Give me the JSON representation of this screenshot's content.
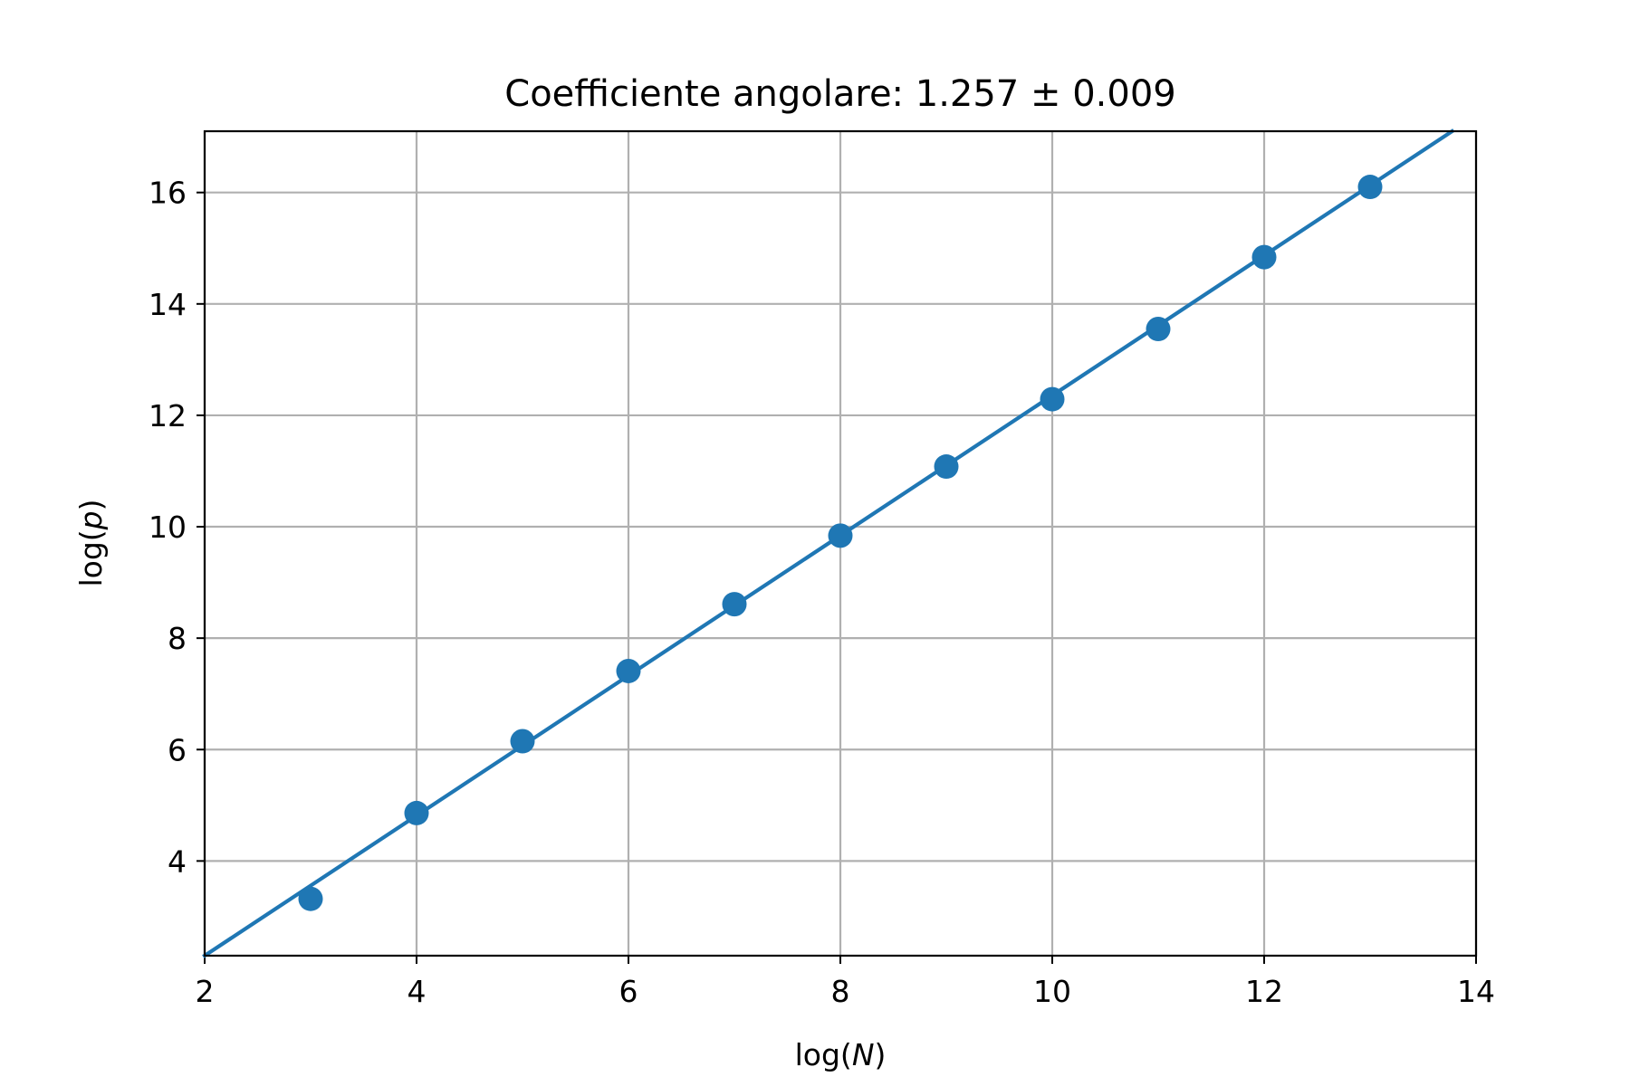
{
  "chart_data": {
    "type": "scatter",
    "title": "Coefficiente angolare: 1.257 ± 0.009",
    "xlabel": {
      "prefix": "log(",
      "var": "N",
      "suffix": ")"
    },
    "ylabel": {
      "prefix": "log(",
      "var": "p",
      "suffix": ")"
    },
    "xlim": [
      2,
      14
    ],
    "ylim": [
      2.3,
      17.1
    ],
    "xticks": [
      2,
      4,
      6,
      8,
      10,
      12,
      14
    ],
    "yticks": [
      4,
      6,
      8,
      10,
      12,
      14,
      16
    ],
    "grid": true,
    "series": [
      {
        "kind": "points",
        "color": "#1f77b4",
        "x": [
          3,
          4,
          5,
          6,
          7,
          8,
          9,
          10,
          11,
          12,
          13
        ],
        "y": [
          3.32,
          4.86,
          6.15,
          7.41,
          8.61,
          9.84,
          11.08,
          12.29,
          13.55,
          14.84,
          16.1
        ]
      },
      {
        "kind": "fit-line",
        "color": "#1f77b4",
        "slope": 1.257,
        "intercept": -0.214
      }
    ]
  }
}
